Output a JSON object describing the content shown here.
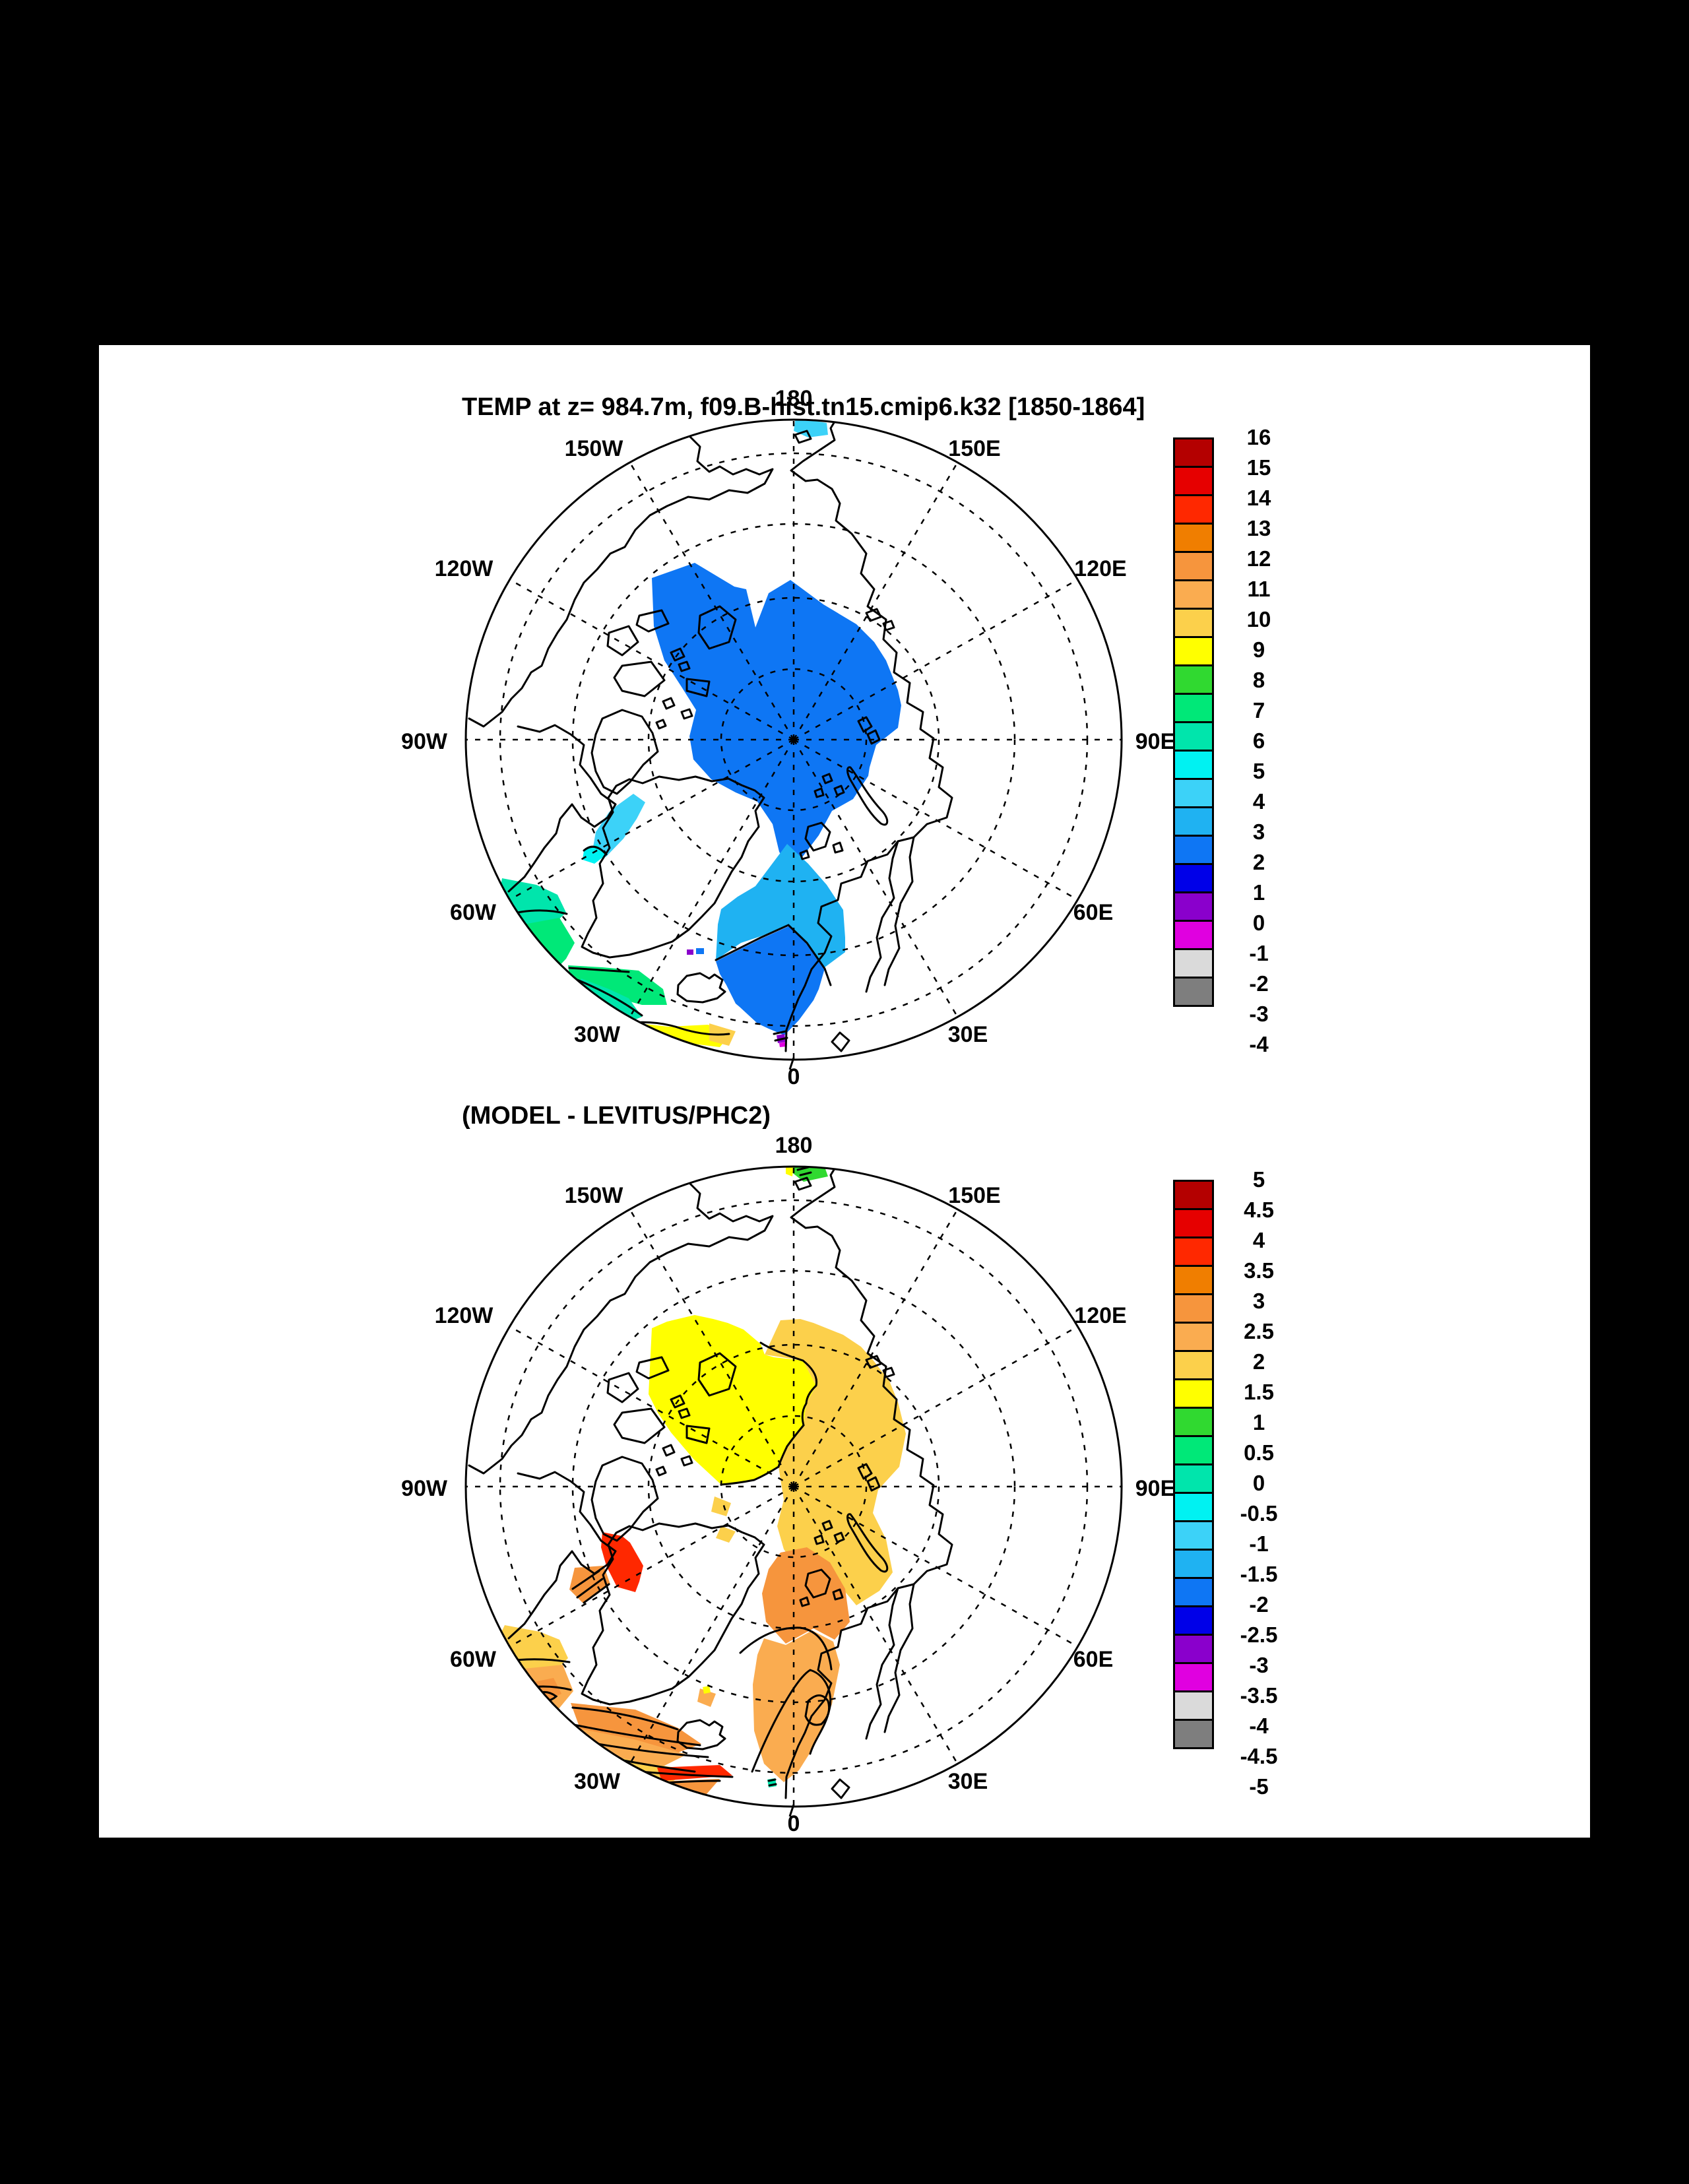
{
  "figure": {
    "background": "#000000",
    "panel_background": "#ffffff"
  },
  "palette": [
    "#B40000",
    "#E60000",
    "#FF2800",
    "#F07E00",
    "#F6953D",
    "#FAAC50",
    "#FCD04B",
    "#FFFF00",
    "#30D930",
    "#00E878",
    "#00E5AC",
    "#00F2F2",
    "#3CD2F8",
    "#1FB2F2",
    "#0E76F4",
    "#0000E8",
    "#8A00CC",
    "#E000E0",
    "#DADADA",
    "#7E7E7E"
  ],
  "map_labels": [
    "180",
    "150W",
    "120W",
    "90W",
    "60W",
    "30W",
    "0",
    "30E",
    "60E",
    "90E",
    "120E",
    "150E"
  ],
  "panel1": {
    "title": "TEMP at z= 984.7m, f09.B-hist.tn15.cmip6.k32 [1850-1864]",
    "colorbar_labels": [
      "16",
      "15",
      "14",
      "13",
      "12",
      "11",
      "10",
      "9",
      "8",
      "7",
      "6",
      "5",
      "4",
      "3",
      "2",
      "1",
      "0",
      "-1",
      "-2",
      "-3",
      "-4"
    ]
  },
  "panel2": {
    "title": "(MODEL - LEVITUS/PHC2)",
    "colorbar_labels": [
      "5",
      "4.5",
      "4",
      "3.5",
      "3",
      "2.5",
      "2",
      "1.5",
      "1",
      "0.5",
      "0",
      "-0.5",
      "-1",
      "-1.5",
      "-2",
      "-2.5",
      "-3",
      "-3.5",
      "-4",
      "-4.5",
      "-5"
    ]
  },
  "chart_data": [
    {
      "type": "heatmap",
      "title": "TEMP at z= 984.7m, f09.B-hist.tn15.cmip6.k32 [1850-1864]",
      "projection": "north polar stereographic, pole centered, dashed graticule every 30 deg lon and 10 deg lat, lon labels 180/150W/120W/90W/60W/30W/0/30E/60E/90E/120E/150E",
      "units": "degC",
      "levels": [
        -4,
        -3,
        -2,
        -1,
        0,
        1,
        2,
        3,
        4,
        5,
        6,
        7,
        8,
        9,
        10,
        11,
        12,
        13,
        14,
        15,
        16
      ],
      "legend_position": "right",
      "regions": [
        {
          "name": "central Arctic Ocean basin",
          "value_range": "1 to 2"
        },
        {
          "name": "northern Greenland Sea / Fram Strait",
          "value_range": "2 to 3"
        },
        {
          "name": "southern Greenland Sea north of Iceland",
          "value_range": "1 to 2"
        },
        {
          "name": "Canadian archipelago / Baffin Bay channel",
          "value_range": "3 to 5"
        },
        {
          "name": "Labrador Sea near 60W edge",
          "value_range": "5 to 7"
        },
        {
          "name": "North Atlantic south of Greenland near 30W",
          "value_range": "6 to 9 with small 9 to 10 patch"
        },
        {
          "name": "Chukchi shelf spot beside 180",
          "value_range": "3 to 4"
        },
        {
          "name": "tiny spot south of Iceland",
          "value_range": "-2 to 0"
        }
      ]
    },
    {
      "type": "heatmap",
      "title": "(MODEL - LEVITUS/PHC2)",
      "projection": "same north polar stereographic panel, model-minus-observations difference",
      "units": "degC",
      "levels": [
        -5,
        -4.5,
        -4,
        -3.5,
        -3,
        -2.5,
        -2,
        -1.5,
        -1,
        -0.5,
        0,
        0.5,
        1,
        1.5,
        2,
        2.5,
        3,
        3.5,
        4,
        4.5,
        5
      ],
      "legend_position": "right",
      "regions": [
        {
          "name": "central Arctic, Amerasian side",
          "value_range": "1 to 1.5"
        },
        {
          "name": "central Arctic, Eurasian side",
          "value_range": "1.5 to 2"
        },
        {
          "name": "Greenland / Barents seas with closed contours",
          "value_range": "2 to 3"
        },
        {
          "name": "Baffin Bay spot",
          "value_range": "3.5 to 4 (red)"
        },
        {
          "name": "channel below Baffin Bay spot",
          "value_range": "2.5 to 3 banded contours"
        },
        {
          "name": "Labrador Sea near 60W edge",
          "value_range": "1.5 to 3"
        },
        {
          "name": "Irminger Sea south of Greenland/Iceland",
          "value_range": "1 to 4 tight contour bands with 3.5 to 4 red streak"
        },
        {
          "name": "Chukchi shelf spot beside 180",
          "value_range": "0.5 to 1"
        }
      ]
    }
  ]
}
